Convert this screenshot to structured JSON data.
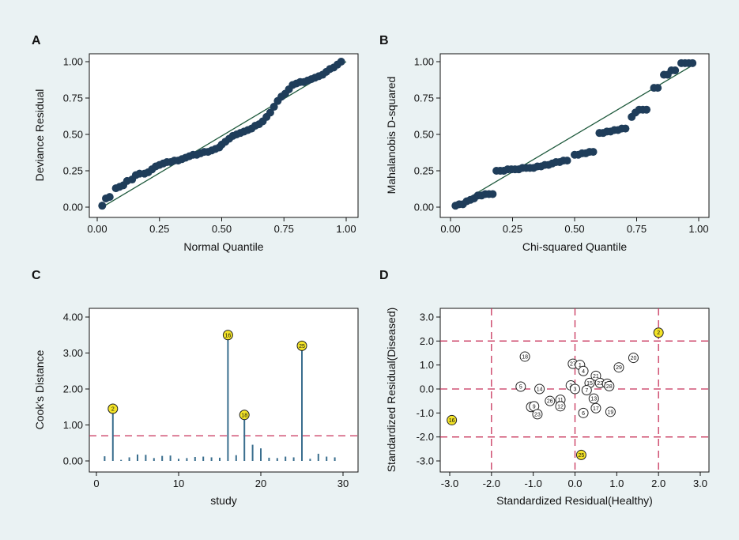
{
  "chart_data": [
    {
      "panel": "A",
      "type": "scatter",
      "xlabel": "Normal Quantile",
      "ylabel": "Deviance Residual",
      "xlim": [
        0,
        1
      ],
      "ylim": [
        0,
        1
      ],
      "xticks": [
        "0.00",
        "0.25",
        "0.50",
        "0.75",
        "1.00"
      ],
      "yticks": [
        "0.00",
        "0.25",
        "0.50",
        "0.75",
        "1.00"
      ],
      "reference_line": [
        [
          0.03,
          0.01
        ],
        [
          1.0,
          1.0
        ]
      ],
      "points": [
        [
          0.02,
          0.01
        ],
        [
          0.035,
          0.06
        ],
        [
          0.05,
          0.07
        ],
        [
          0.075,
          0.13
        ],
        [
          0.09,
          0.14
        ],
        [
          0.105,
          0.15
        ],
        [
          0.12,
          0.18
        ],
        [
          0.14,
          0.19
        ],
        [
          0.155,
          0.22
        ],
        [
          0.17,
          0.23
        ],
        [
          0.19,
          0.23
        ],
        [
          0.205,
          0.24
        ],
        [
          0.22,
          0.26
        ],
        [
          0.235,
          0.28
        ],
        [
          0.25,
          0.29
        ],
        [
          0.265,
          0.3
        ],
        [
          0.28,
          0.31
        ],
        [
          0.295,
          0.31
        ],
        [
          0.31,
          0.32
        ],
        [
          0.325,
          0.32
        ],
        [
          0.34,
          0.33
        ],
        [
          0.355,
          0.34
        ],
        [
          0.37,
          0.35
        ],
        [
          0.385,
          0.36
        ],
        [
          0.4,
          0.36
        ],
        [
          0.415,
          0.37
        ],
        [
          0.43,
          0.38
        ],
        [
          0.445,
          0.38
        ],
        [
          0.46,
          0.39
        ],
        [
          0.475,
          0.4
        ],
        [
          0.49,
          0.41
        ],
        [
          0.5,
          0.43
        ],
        [
          0.515,
          0.45
        ],
        [
          0.53,
          0.47
        ],
        [
          0.545,
          0.49
        ],
        [
          0.56,
          0.5
        ],
        [
          0.575,
          0.51
        ],
        [
          0.59,
          0.52
        ],
        [
          0.605,
          0.53
        ],
        [
          0.62,
          0.54
        ],
        [
          0.635,
          0.56
        ],
        [
          0.65,
          0.57
        ],
        [
          0.665,
          0.59
        ],
        [
          0.68,
          0.62
        ],
        [
          0.695,
          0.65
        ],
        [
          0.71,
          0.69
        ],
        [
          0.725,
          0.73
        ],
        [
          0.74,
          0.76
        ],
        [
          0.755,
          0.78
        ],
        [
          0.77,
          0.81
        ],
        [
          0.785,
          0.84
        ],
        [
          0.8,
          0.85
        ],
        [
          0.815,
          0.86
        ],
        [
          0.83,
          0.86
        ],
        [
          0.845,
          0.87
        ],
        [
          0.86,
          0.88
        ],
        [
          0.875,
          0.89
        ],
        [
          0.89,
          0.9
        ],
        [
          0.905,
          0.91
        ],
        [
          0.92,
          0.93
        ],
        [
          0.935,
          0.95
        ],
        [
          0.95,
          0.96
        ],
        [
          0.965,
          0.98
        ],
        [
          0.98,
          1.0
        ]
      ]
    },
    {
      "panel": "B",
      "type": "scatter",
      "xlabel": "Chi-squared Quantile",
      "ylabel": "Mahalanobis D-squared",
      "xlim": [
        0,
        1
      ],
      "ylim": [
        0,
        1
      ],
      "xticks": [
        "0.00",
        "0.25",
        "0.50",
        "0.75",
        "1.00"
      ],
      "yticks": [
        "0.00",
        "0.25",
        "0.50",
        "0.75",
        "1.00"
      ],
      "reference_line": [
        [
          0.02,
          0.01
        ],
        [
          0.98,
          0.98
        ]
      ],
      "points": [
        [
          0.02,
          0.01
        ],
        [
          0.035,
          0.02
        ],
        [
          0.05,
          0.02
        ],
        [
          0.065,
          0.04
        ],
        [
          0.08,
          0.05
        ],
        [
          0.095,
          0.06
        ],
        [
          0.11,
          0.08
        ],
        [
          0.125,
          0.08
        ],
        [
          0.14,
          0.09
        ],
        [
          0.155,
          0.09
        ],
        [
          0.17,
          0.09
        ],
        [
          0.185,
          0.25
        ],
        [
          0.2,
          0.25
        ],
        [
          0.215,
          0.25
        ],
        [
          0.23,
          0.26
        ],
        [
          0.245,
          0.26
        ],
        [
          0.26,
          0.26
        ],
        [
          0.275,
          0.26
        ],
        [
          0.29,
          0.27
        ],
        [
          0.305,
          0.27
        ],
        [
          0.32,
          0.27
        ],
        [
          0.335,
          0.27
        ],
        [
          0.35,
          0.28
        ],
        [
          0.365,
          0.28
        ],
        [
          0.38,
          0.29
        ],
        [
          0.395,
          0.29
        ],
        [
          0.41,
          0.3
        ],
        [
          0.425,
          0.31
        ],
        [
          0.44,
          0.31
        ],
        [
          0.455,
          0.32
        ],
        [
          0.47,
          0.32
        ],
        [
          0.5,
          0.36
        ],
        [
          0.515,
          0.36
        ],
        [
          0.53,
          0.37
        ],
        [
          0.545,
          0.37
        ],
        [
          0.56,
          0.38
        ],
        [
          0.575,
          0.38
        ],
        [
          0.6,
          0.51
        ],
        [
          0.615,
          0.51
        ],
        [
          0.63,
          0.52
        ],
        [
          0.645,
          0.52
        ],
        [
          0.66,
          0.53
        ],
        [
          0.675,
          0.53
        ],
        [
          0.69,
          0.54
        ],
        [
          0.705,
          0.54
        ],
        [
          0.73,
          0.62
        ],
        [
          0.745,
          0.65
        ],
        [
          0.76,
          0.67
        ],
        [
          0.775,
          0.67
        ],
        [
          0.79,
          0.67
        ],
        [
          0.82,
          0.82
        ],
        [
          0.835,
          0.82
        ],
        [
          0.86,
          0.91
        ],
        [
          0.875,
          0.91
        ],
        [
          0.89,
          0.94
        ],
        [
          0.905,
          0.94
        ],
        [
          0.93,
          0.99
        ],
        [
          0.945,
          0.99
        ],
        [
          0.96,
          0.99
        ],
        [
          0.975,
          0.99
        ]
      ]
    },
    {
      "panel": "C",
      "type": "stem",
      "xlabel": "study",
      "ylabel": "Cook's Distance",
      "xlim": [
        0,
        30
      ],
      "ylim": [
        0,
        4
      ],
      "xticks": [
        "0",
        "10",
        "20",
        "30"
      ],
      "yticks": [
        "0.00",
        "1.00",
        "2.00",
        "3.00",
        "4.00"
      ],
      "threshold": 0.7,
      "studies": [
        1,
        2,
        3,
        4,
        5,
        6,
        7,
        8,
        9,
        10,
        11,
        12,
        13,
        14,
        15,
        16,
        17,
        18,
        19,
        20,
        21,
        22,
        23,
        24,
        25,
        26,
        27,
        28,
        29
      ],
      "values": [
        0.13,
        1.45,
        0.03,
        0.1,
        0.18,
        0.17,
        0.08,
        0.14,
        0.15,
        0.06,
        0.08,
        0.11,
        0.12,
        0.1,
        0.09,
        3.5,
        0.16,
        1.28,
        0.45,
        0.35,
        0.09,
        0.08,
        0.12,
        0.1,
        3.2,
        0.06,
        0.2,
        0.12,
        0.1
      ],
      "highlight": [
        {
          "study": 2,
          "label": "2"
        },
        {
          "study": 16,
          "label": "16"
        },
        {
          "study": 18,
          "label": "18"
        },
        {
          "study": 25,
          "label": "25"
        }
      ]
    },
    {
      "panel": "D",
      "type": "scatter",
      "xlabel": "Standardized Residual(Healthy)",
      "ylabel": "Standardized Residual(Diseased)",
      "xlim": [
        -3,
        3
      ],
      "ylim": [
        -3,
        3
      ],
      "xticks": [
        "-3.0",
        "-2.0",
        "-1.0",
        "0.0",
        "1.0",
        "2.0",
        "3.0"
      ],
      "yticks": [
        "-3.0",
        "-2.0",
        "-1.0",
        "0.0",
        "1.0",
        "2.0",
        "3.0"
      ],
      "dashed_x": [
        -2,
        0,
        2
      ],
      "dashed_y": [
        -2,
        0,
        2
      ],
      "points": [
        {
          "id": "18",
          "x": -1.2,
          "y": 1.35,
          "highlight": false
        },
        {
          "id": "27",
          "x": -0.05,
          "y": 1.05,
          "highlight": false
        },
        {
          "id": "1",
          "x": 0.12,
          "y": 1.0,
          "highlight": false
        },
        {
          "id": "4",
          "x": 0.2,
          "y": 0.75,
          "highlight": false
        },
        {
          "id": "21",
          "x": 0.5,
          "y": 0.55,
          "highlight": false
        },
        {
          "id": "29",
          "x": 1.05,
          "y": 0.9,
          "highlight": false
        },
        {
          "id": "20",
          "x": 1.4,
          "y": 1.3,
          "highlight": false
        },
        {
          "id": "5",
          "x": -1.3,
          "y": 0.1,
          "highlight": false
        },
        {
          "id": "14",
          "x": -0.85,
          "y": 0.0,
          "highlight": false
        },
        {
          "id": "2",
          "x": -0.1,
          "y": 0.15,
          "highlight": false
        },
        {
          "id": "3",
          "x": 0.0,
          "y": 0.0,
          "highlight": false
        },
        {
          "id": "15",
          "x": 0.35,
          "y": 0.25,
          "highlight": false
        },
        {
          "id": "22",
          "x": 0.6,
          "y": 0.25,
          "highlight": false
        },
        {
          "id": "24",
          "x": 0.77,
          "y": 0.22,
          "highlight": false
        },
        {
          "id": "28",
          "x": 0.82,
          "y": 0.12,
          "highlight": false
        },
        {
          "id": "7",
          "x": 0.28,
          "y": -0.05,
          "highlight": false
        },
        {
          "id": "13",
          "x": 0.45,
          "y": -0.4,
          "highlight": false
        },
        {
          "id": "26",
          "x": -0.6,
          "y": -0.5,
          "highlight": false
        },
        {
          "id": "11",
          "x": -0.35,
          "y": -0.45,
          "highlight": false
        },
        {
          "id": "12",
          "x": -0.35,
          "y": -0.72,
          "highlight": false
        },
        {
          "id": "8",
          "x": -1.05,
          "y": -0.75,
          "highlight": false
        },
        {
          "id": "9",
          "x": -0.98,
          "y": -0.72,
          "highlight": false
        },
        {
          "id": "23",
          "x": -0.9,
          "y": -1.05,
          "highlight": false
        },
        {
          "id": "17",
          "x": 0.5,
          "y": -0.8,
          "highlight": false
        },
        {
          "id": "6",
          "x": 0.2,
          "y": -1.0,
          "highlight": false
        },
        {
          "id": "19",
          "x": 0.85,
          "y": -0.95,
          "highlight": false
        },
        {
          "id": "2",
          "x": 2.0,
          "y": 2.35,
          "highlight": true
        },
        {
          "id": "16",
          "x": -2.95,
          "y": -1.3,
          "highlight": true
        },
        {
          "id": "25",
          "x": 0.15,
          "y": -2.75,
          "highlight": true
        }
      ]
    }
  ],
  "panel_labels": {
    "A": "A",
    "B": "B",
    "C": "C",
    "D": "D"
  },
  "colors": {
    "background": "#eaf2f3",
    "marker": "#1f3d5a",
    "line": "#1f5a3d",
    "dashed": "#c8325a",
    "stem": "#3a6e8e",
    "highlight_fill": "#f3e327",
    "axis": "#111111"
  }
}
